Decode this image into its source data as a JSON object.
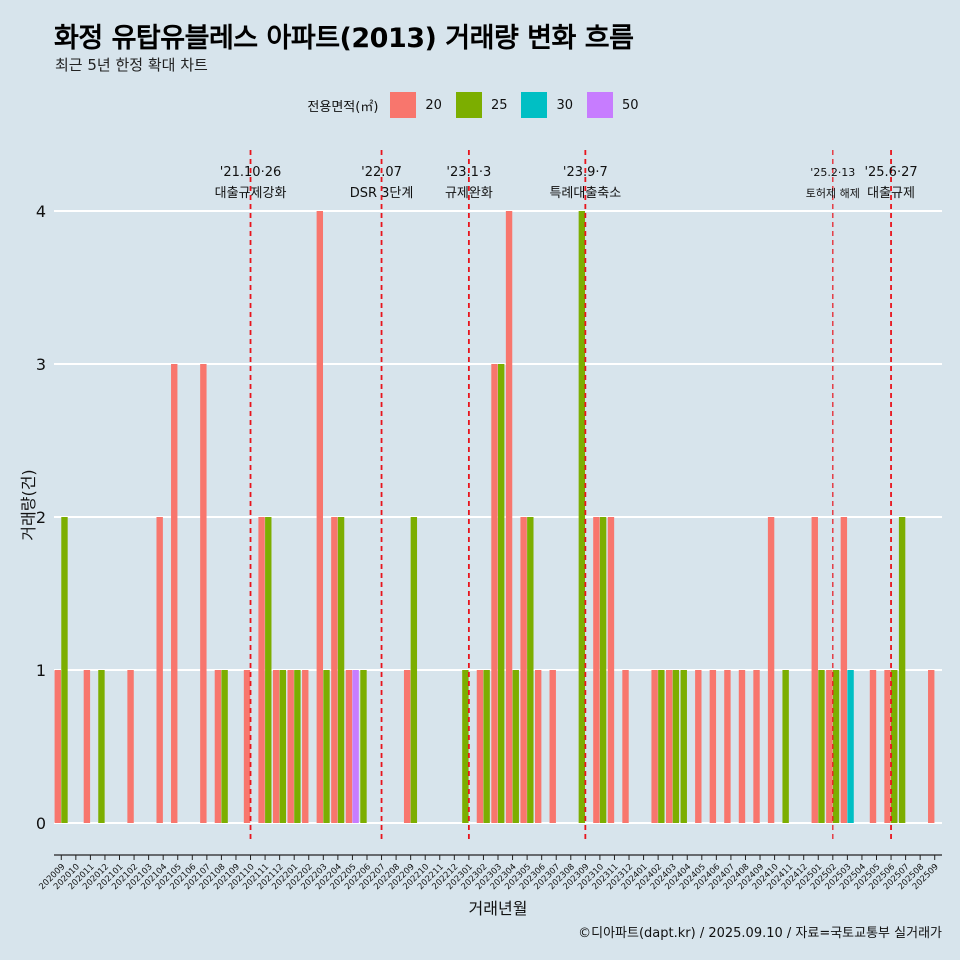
{
  "title": "화정 유탑유블레스 아파트(2013) 거래량 변화 흐름",
  "subtitle": "최근 5년 한정 확대 차트",
  "caption": "©디아파트(dapt.kr) / 2025.09.10 / 자료=국토교통부 실거래가",
  "legend": {
    "title": "전용면적(㎡)",
    "items": [
      {
        "label": "20",
        "color": "#F8766D"
      },
      {
        "label": "25",
        "color": "#7CAE00"
      },
      {
        "label": "30",
        "color": "#00BFC4"
      },
      {
        "label": "50",
        "color": "#C77CFF"
      }
    ]
  },
  "chart_data": {
    "type": "bar",
    "xlabel": "거래년월",
    "ylabel": "거래량(건)",
    "ylim": [
      0,
      4
    ],
    "yticks": [
      0,
      1,
      2,
      3,
      4
    ],
    "grid": true,
    "categories": [
      "202009",
      "202010",
      "202011",
      "202012",
      "202101",
      "202102",
      "202103",
      "202104",
      "202105",
      "202106",
      "202107",
      "202108",
      "202109",
      "202110",
      "202111",
      "202112",
      "202201",
      "202202",
      "202203",
      "202204",
      "202205",
      "202206",
      "202207",
      "202208",
      "202209",
      "202210",
      "202211",
      "202212",
      "202301",
      "202302",
      "202303",
      "202304",
      "202305",
      "202306",
      "202307",
      "202308",
      "202309",
      "202310",
      "202311",
      "202312",
      "202401",
      "202402",
      "202403",
      "202404",
      "202405",
      "202406",
      "202407",
      "202408",
      "202409",
      "202410",
      "202411",
      "202412",
      "202501",
      "202502",
      "202503",
      "202504",
      "202505",
      "202506",
      "202507",
      "202508",
      "202509"
    ],
    "series": [
      {
        "name": "20",
        "color": "#F8766D",
        "values": [
          1,
          0,
          1,
          0,
          0,
          1,
          0,
          2,
          3,
          0,
          3,
          1,
          0,
          1,
          2,
          1,
          1,
          1,
          4,
          2,
          1,
          0,
          0,
          0,
          1,
          0,
          0,
          0,
          0,
          1,
          3,
          4,
          2,
          1,
          1,
          0,
          0,
          2,
          2,
          1,
          0,
          1,
          1,
          0,
          1,
          1,
          1,
          1,
          1,
          2,
          0,
          0,
          2,
          1,
          2,
          0,
          1,
          1,
          0,
          0,
          1
        ]
      },
      {
        "name": "25",
        "color": "#7CAE00",
        "values": [
          2,
          0,
          0,
          1,
          0,
          0,
          0,
          0,
          0,
          0,
          0,
          1,
          0,
          0,
          2,
          1,
          1,
          0,
          1,
          2,
          0,
          1,
          0,
          0,
          2,
          0,
          0,
          0,
          1,
          1,
          3,
          1,
          2,
          0,
          0,
          0,
          4,
          2,
          0,
          0,
          0,
          1,
          1,
          1,
          0,
          0,
          0,
          0,
          0,
          0,
          1,
          0,
          1,
          1,
          0,
          0,
          0,
          1,
          2,
          0,
          0
        ]
      },
      {
        "name": "30",
        "color": "#00BFC4",
        "values": [
          0,
          0,
          0,
          0,
          0,
          0,
          0,
          0,
          0,
          0,
          0,
          0,
          0,
          0,
          0,
          0,
          0,
          0,
          0,
          0,
          0,
          0,
          0,
          0,
          0,
          0,
          0,
          0,
          0,
          0,
          0,
          0,
          0,
          0,
          0,
          0,
          0,
          0,
          0,
          0,
          0,
          0,
          0,
          0,
          0,
          0,
          0,
          0,
          0,
          0,
          0,
          0,
          0,
          0,
          1,
          0,
          0,
          0,
          0,
          0,
          0
        ]
      },
      {
        "name": "50",
        "color": "#C77CFF",
        "values": [
          0,
          0,
          0,
          0,
          0,
          0,
          0,
          0,
          0,
          0,
          0,
          0,
          0,
          0,
          0,
          0,
          0,
          0,
          0,
          0,
          1,
          0,
          0,
          0,
          0,
          0,
          0,
          0,
          0,
          0,
          0,
          0,
          0,
          0,
          0,
          0,
          0,
          0,
          0,
          0,
          0,
          0,
          0,
          0,
          0,
          0,
          0,
          0,
          0,
          0,
          0,
          0,
          0,
          0,
          0,
          0,
          0,
          0,
          0,
          0,
          0
        ]
      }
    ],
    "annotations": [
      {
        "category": "202110",
        "date": "'21.10·26",
        "label": "대출규제강화",
        "small": false
      },
      {
        "category": "202207",
        "date": "'22.07",
        "label": "DSR 3단계",
        "small": false
      },
      {
        "category": "202301",
        "date": "'23.1·3",
        "label": "규제완화",
        "small": false
      },
      {
        "category": "202309",
        "date": "'23.9·7",
        "label": "특례대출축소",
        "small": false
      },
      {
        "category": "202502",
        "date": "'25.2·13",
        "label": "토허제 해제",
        "small": true
      },
      {
        "category": "202506",
        "date": "'25.6·27",
        "label": "대출규제",
        "small": false
      }
    ]
  }
}
